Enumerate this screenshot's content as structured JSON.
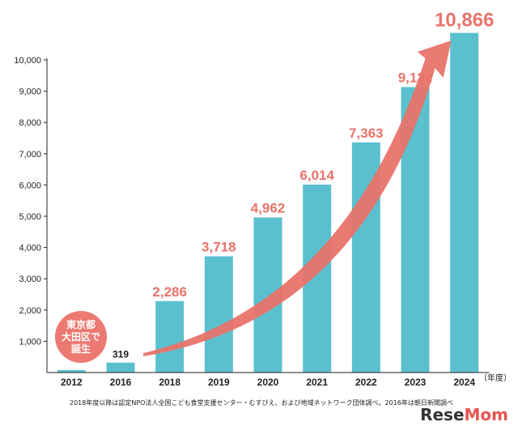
{
  "chart_data": {
    "type": "bar",
    "categories": [
      "2012",
      "2016",
      "2018",
      "2019",
      "2020",
      "2021",
      "2022",
      "2023",
      "2024"
    ],
    "values": [
      1,
      319,
      2286,
      3718,
      4962,
      6014,
      7363,
      9132,
      10866
    ],
    "value_labels": [
      "",
      "319",
      "2,286",
      "3,718",
      "4,962",
      "6,014",
      "7,363",
      "9,132",
      "10,866"
    ],
    "ylim": [
      0,
      10000
    ],
    "yticks": [
      "1,000",
      "2,000",
      "3,000",
      "4,000",
      "5,000",
      "6,000",
      "7,000",
      "8,000",
      "9,000",
      "10,000"
    ],
    "x_unit": "（年度）",
    "annotation": "東京都大田区で誕生",
    "bar_color": "#5bc0ce",
    "accent_color": "#e8736a",
    "grid": false
  },
  "footnote": "2018年度以降は認定NPO法人全国こども食堂支援センター・むすびえ、および地域ネットワーク団体調べ。2016年は朝日新聞調べ",
  "watermark": {
    "part1": "Rese",
    "part2": "Mom"
  },
  "bubble": {
    "line1": "東京都",
    "line2": "大田区で",
    "line3": "誕生"
  }
}
